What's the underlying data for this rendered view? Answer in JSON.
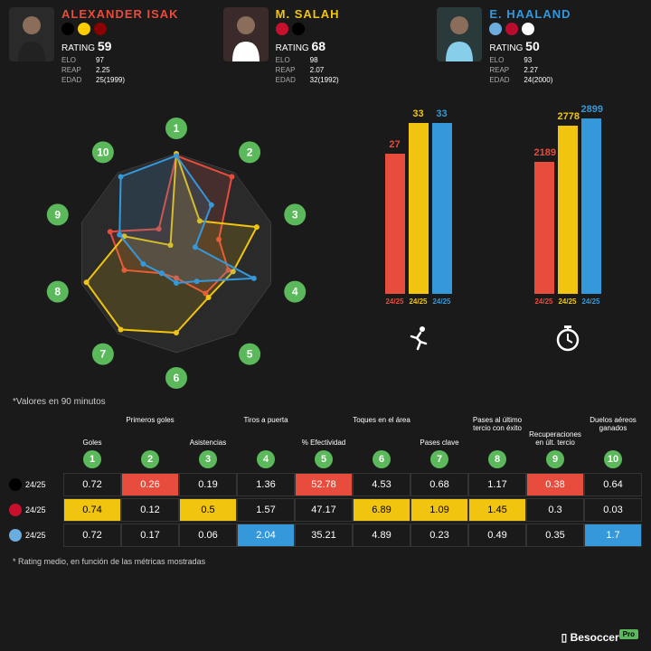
{
  "colors": {
    "p1": "#e74c3c",
    "p2": "#f1c40f",
    "p3": "#3498db",
    "green": "#5bb85b",
    "bg": "#1a1a1a",
    "grid": "#555"
  },
  "players": [
    {
      "name": "ALEXANDER ISAK",
      "name_color": "#e74c3c",
      "rating": 59,
      "elo": 97,
      "reap": "2.25",
      "edad": "25(1999)",
      "badges": [
        "#000000",
        "#ffcc00",
        "#8b0000"
      ],
      "photo_bg": "#2a2a2a",
      "jersey": "#222"
    },
    {
      "name": "M. SALAH",
      "name_color": "#f1c40f",
      "rating": 68,
      "elo": 98,
      "reap": "2.07",
      "edad": "32(1992)",
      "badges": [
        "#c8102e",
        "#000000"
      ],
      "photo_bg": "#3a2a2a",
      "jersey": "#fff"
    },
    {
      "name": "E. HAALAND",
      "name_color": "#3498db",
      "rating": 50,
      "elo": 93,
      "reap": "2.27",
      "edad": "24(2000)",
      "badges": [
        "#6caddf",
        "#ba0c2f",
        "#ffffff"
      ],
      "photo_bg": "#2a3a3a",
      "jersey": "#87ceeb"
    }
  ],
  "stat_labels": {
    "rating": "RATING",
    "elo": "ELO",
    "reap": "REAP",
    "edad": "EDAD"
  },
  "radar": {
    "rings": 5,
    "axes": 10,
    "series": [
      {
        "color_key": "p1",
        "values": [
          0.98,
          0.95,
          0.45,
          0.55,
          0.5,
          0.25,
          0.25,
          0.55,
          0.7,
          0.3
        ]
      },
      {
        "color_key": "p2",
        "values": [
          1.0,
          0.4,
          0.85,
          0.6,
          0.55,
          0.8,
          0.95,
          0.95,
          0.55,
          0.1
        ]
      },
      {
        "color_key": "p3",
        "values": [
          0.98,
          0.6,
          0.2,
          0.82,
          0.35,
          0.3,
          0.25,
          0.35,
          0.6,
          0.95
        ]
      }
    ]
  },
  "bar_groups": [
    {
      "icon": "running",
      "max": 35,
      "bars": [
        {
          "value": 27,
          "color_key": "p1",
          "label": "24/25"
        },
        {
          "value": 33,
          "color_key": "p2",
          "label": "24/25"
        },
        {
          "value": 33,
          "color_key": "p3",
          "label": "24/25"
        }
      ]
    },
    {
      "icon": "stopwatch",
      "max": 3000,
      "bars": [
        {
          "value": 2189,
          "color_key": "p1",
          "label": "24/25"
        },
        {
          "value": 2778,
          "color_key": "p2",
          "label": "24/25"
        },
        {
          "value": 2899,
          "color_key": "p3",
          "label": "24/25"
        }
      ]
    }
  ],
  "note1": "*Valores en 90 minutos",
  "metrics": [
    {
      "n": 1,
      "label": "Goles"
    },
    {
      "n": 2,
      "label": "Primeros goles"
    },
    {
      "n": 3,
      "label": "Asistencias"
    },
    {
      "n": 4,
      "label": "Tiros a puerta"
    },
    {
      "n": 5,
      "label": "% Efectividad"
    },
    {
      "n": 6,
      "label": "Toques en el área"
    },
    {
      "n": 7,
      "label": "Pases clave"
    },
    {
      "n": 8,
      "label": "Pases al último tercio con éxito"
    },
    {
      "n": 9,
      "label": "Recuperaciones en últ. tercio"
    },
    {
      "n": 10,
      "label": "Duelos aéreos ganados"
    }
  ],
  "table_rows": [
    {
      "label": "24/25",
      "badge_bg": "#000000",
      "cells": [
        {
          "v": "0.72",
          "hl": null
        },
        {
          "v": "0.26",
          "hl": "p1"
        },
        {
          "v": "0.19",
          "hl": null
        },
        {
          "v": "1.36",
          "hl": null
        },
        {
          "v": "52.78",
          "hl": "p1"
        },
        {
          "v": "4.53",
          "hl": null
        },
        {
          "v": "0.68",
          "hl": null
        },
        {
          "v": "1.17",
          "hl": null
        },
        {
          "v": "0.38",
          "hl": "p1"
        },
        {
          "v": "0.64",
          "hl": null
        }
      ]
    },
    {
      "label": "24/25",
      "badge_bg": "#c8102e",
      "cells": [
        {
          "v": "0.74",
          "hl": "p2"
        },
        {
          "v": "0.12",
          "hl": null
        },
        {
          "v": "0.5",
          "hl": "p2"
        },
        {
          "v": "1.57",
          "hl": null
        },
        {
          "v": "47.17",
          "hl": null
        },
        {
          "v": "6.89",
          "hl": "p2"
        },
        {
          "v": "1.09",
          "hl": "p2"
        },
        {
          "v": "1.45",
          "hl": "p2"
        },
        {
          "v": "0.3",
          "hl": null
        },
        {
          "v": "0.03",
          "hl": null
        }
      ]
    },
    {
      "label": "24/25",
      "badge_bg": "#6caddf",
      "cells": [
        {
          "v": "0.72",
          "hl": null
        },
        {
          "v": "0.17",
          "hl": null
        },
        {
          "v": "0.06",
          "hl": null
        },
        {
          "v": "2.04",
          "hl": "p3"
        },
        {
          "v": "35.21",
          "hl": null
        },
        {
          "v": "4.89",
          "hl": null
        },
        {
          "v": "0.23",
          "hl": null
        },
        {
          "v": "0.49",
          "hl": null
        },
        {
          "v": "0.35",
          "hl": null
        },
        {
          "v": "1.7",
          "hl": "p3"
        }
      ]
    }
  ],
  "note2": "* Rating medio, en función de las métricas mostradas",
  "logo": {
    "brand": "Besoccer",
    "tag": "Pro"
  }
}
